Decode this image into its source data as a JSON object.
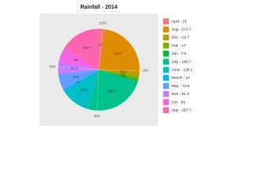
{
  "chart_data": {
    "type": "pie",
    "title": "Rainfall - 2014",
    "categories": [
      "April - 29",
      "Aug - 274.7",
      "Dec - 22.7",
      "Feb - 17",
      "Jan - 7.5",
      "July - 289.7",
      "June - 138.1",
      "March - 14",
      "May - 73.5",
      "Nov - 61.4",
      "Oct - 69",
      "Sep - 187.7"
    ],
    "values": [
      29,
      274.7,
      22.7,
      17,
      7.5,
      289.7,
      138.1,
      14,
      73.5,
      61.4,
      69,
      187.7
    ],
    "colors": [
      "#F8766D",
      "#DE8C00",
      "#B79F00",
      "#7CAE00",
      "#00BA38",
      "#00C08B",
      "#00BFC4",
      "#00B4F0",
      "#619CFF",
      "#C77CFF",
      "#F564E3",
      "#FF64B0"
    ],
    "xticks": [
      300,
      600,
      900,
      1200
    ]
  }
}
